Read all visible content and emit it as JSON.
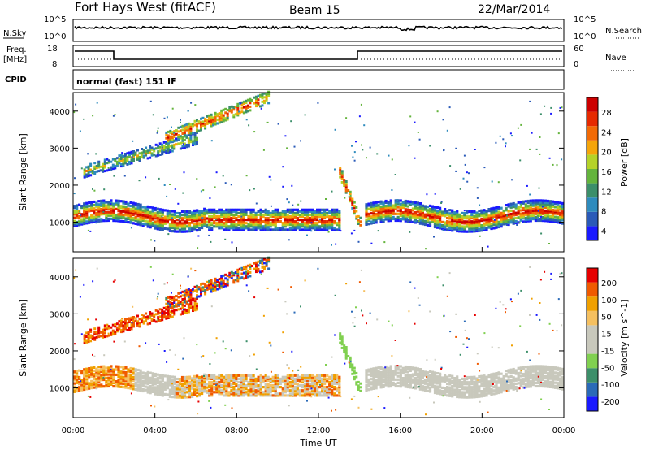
{
  "header": {
    "site": "Fort Hays West (fitACF)",
    "beam": "Beam 15",
    "date": "22/Mar/2014"
  },
  "top_panels": {
    "noise_left_label": "N.Sky",
    "noise_right_label": "N.Search",
    "noise_left_ticks": [
      "10^5",
      "10^0"
    ],
    "noise_right_ticks": [
      "10^5",
      "10^0"
    ],
    "freq_label_line1": "Freq.",
    "freq_label_line2": "[MHz]",
    "freq_ticks": [
      "18",
      "8"
    ],
    "nave_label": "Nave",
    "nave_ticks": [
      "60",
      "0"
    ],
    "cpid_label": "CPID",
    "cpid_text": "normal (fast) 151 IF"
  },
  "colors": {
    "power_scale": [
      "#1a1aff",
      "#2a5ab8",
      "#2e8bbd",
      "#3c8f6a",
      "#64b43c",
      "#b4d228",
      "#f5a50a",
      "#f26a05",
      "#e62a00",
      "#cc0000"
    ],
    "velocity_scale": [
      "#e60000",
      "#f05a00",
      "#f0a000",
      "#f5c060",
      "#c8c8bc",
      "#c8c8bc",
      "#80d050",
      "#3c8f6a",
      "#2a6ab8",
      "#1a1aff"
    ],
    "ground_scatter": "#c8c8bc"
  },
  "chart_data": [
    {
      "type": "heatmap",
      "title": "Power",
      "ylabel": "Slant Range [km]",
      "ylim": [
        200,
        4500
      ],
      "yticks": [
        "1000",
        "2000",
        "3000",
        "4000"
      ],
      "colorbar_label": "Power [dB]",
      "colorbar_ticks": [
        "4",
        "8",
        "12",
        "16",
        "20",
        "24",
        "28"
      ],
      "scatter_bands": [
        {
          "name": "ionospheric_main",
          "from_hour": 0,
          "to_hour": 24,
          "center_km": 1200,
          "width_km": 250,
          "peak_db": 28
        },
        {
          "name": "rising_band",
          "from_hour": 0.5,
          "to_hour": 6,
          "from_km": 2400,
          "to_km": 3300,
          "peak_db": 16
        },
        {
          "name": "rising_band_upper",
          "from_hour": 4.5,
          "to_hour": 9.5,
          "from_km": 3300,
          "to_km": 4400,
          "peak_db": 24
        },
        {
          "name": "dip_feature",
          "from_hour": 13,
          "to_hour": 14,
          "from_km": 2400,
          "to_km": 1000,
          "peak_db": 26
        }
      ]
    },
    {
      "type": "heatmap",
      "title": "Velocity",
      "ylabel": "Slant Range [km]",
      "xlabel": "Time UT",
      "ylim": [
        200,
        4500
      ],
      "yticks": [
        "1000",
        "2000",
        "3000",
        "4000"
      ],
      "xticks": [
        "00:00",
        "04:00",
        "08:00",
        "12:00",
        "16:00",
        "20:00",
        "00:00"
      ],
      "colorbar_label": "Velocity [m s^-1]",
      "colorbar_ticks": [
        "200",
        "100",
        "50",
        "15",
        "-15",
        "-50",
        "-100",
        "-200"
      ],
      "velocity_range_ms": [
        -200,
        200
      ]
    }
  ]
}
